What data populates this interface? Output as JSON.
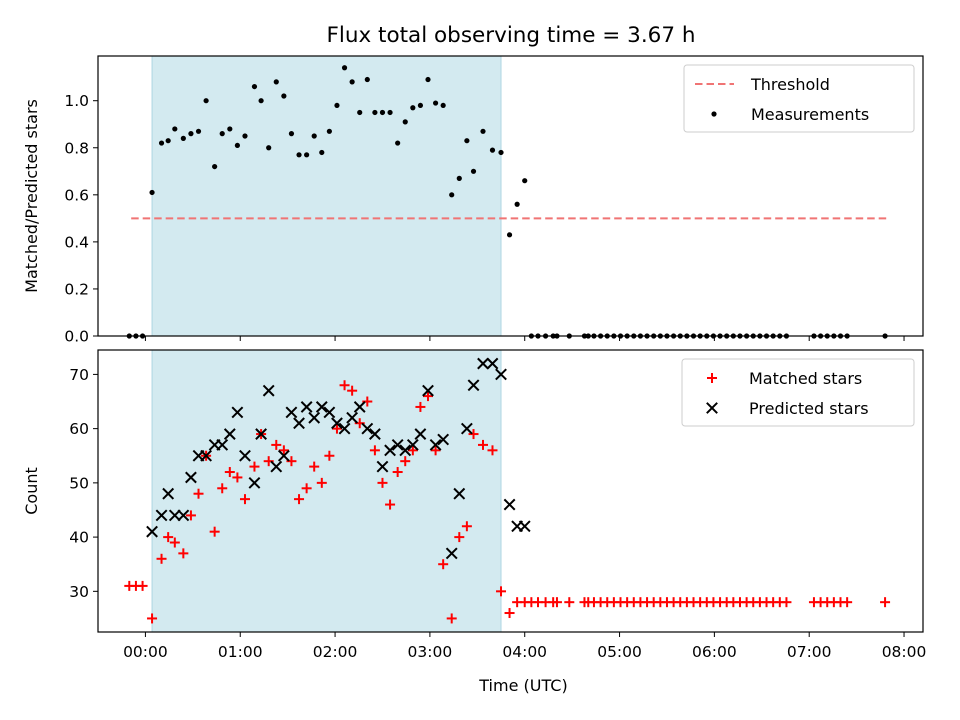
{
  "title": "Flux total observing time = 3.67 h",
  "colors": {
    "shade": "#d3eaf0",
    "shade_edge": "#aed6e3",
    "threshold": "#f07474",
    "measure": "#000000",
    "matched": "#ff0000",
    "predicted": "#000000"
  },
  "chart_data": [
    {
      "type": "scatter",
      "ylabel": "Matched/Predicted stars",
      "xlim": [
        -0.5,
        8.2
      ],
      "ylim": [
        0,
        1.19
      ],
      "yticks": [
        0,
        0.2,
        0.4,
        0.6,
        0.8,
        1.0
      ],
      "ytick_labels": [
        "0.0",
        "0.2",
        "0.4",
        "0.6",
        "0.8",
        "1.0"
      ],
      "xtick_labels_visible": false,
      "shaded_span": [
        0.07,
        3.75
      ],
      "legend": {
        "placement": "top-right",
        "entries": [
          "Threshold",
          "Measurements"
        ]
      },
      "threshold": {
        "name": "Threshold",
        "y": 0.5,
        "x_range": [
          -0.15,
          7.85
        ],
        "style": "dashed"
      },
      "series": [
        {
          "name": "Measurements",
          "marker": "dot",
          "x": [
            -0.17,
            -0.1,
            -0.03,
            0.07,
            0.17,
            0.24,
            0.31,
            0.4,
            0.48,
            0.56,
            0.64,
            0.73,
            0.81,
            0.89,
            0.97,
            1.05,
            1.15,
            1.22,
            1.3,
            1.38,
            1.46,
            1.54,
            1.62,
            1.7,
            1.78,
            1.86,
            1.94,
            2.02,
            2.1,
            2.18,
            2.26,
            2.34,
            2.42,
            2.5,
            2.58,
            2.66,
            2.74,
            2.82,
            2.9,
            2.98,
            3.06,
            3.14,
            3.23,
            3.31,
            3.39,
            3.46,
            3.56,
            3.66,
            3.75,
            3.84,
            3.92,
            4.0,
            4.07,
            4.14,
            4.22,
            4.3,
            4.34,
            4.47,
            4.63,
            4.67,
            4.73,
            4.8,
            4.87,
            4.94,
            5.01,
            5.08,
            5.15,
            5.22,
            5.29,
            5.36,
            5.43,
            5.5,
            5.57,
            5.64,
            5.71,
            5.78,
            5.85,
            5.92,
            5.99,
            6.06,
            6.13,
            6.2,
            6.27,
            6.34,
            6.41,
            6.48,
            6.55,
            6.62,
            6.69,
            6.76,
            7.05,
            7.12,
            7.19,
            7.26,
            7.33,
            7.4,
            7.8
          ],
          "y": [
            0,
            0,
            0,
            0.61,
            0.82,
            0.83,
            0.88,
            0.84,
            0.86,
            0.87,
            1.0,
            0.72,
            0.86,
            0.88,
            0.81,
            0.85,
            1.06,
            1.0,
            0.8,
            1.08,
            1.02,
            0.86,
            0.77,
            0.77,
            0.85,
            0.78,
            0.87,
            0.98,
            1.14,
            1.08,
            0.95,
            1.09,
            0.95,
            0.95,
            0.95,
            0.82,
            0.91,
            0.97,
            0.98,
            1.09,
            0.99,
            0.98,
            0.6,
            0.67,
            0.83,
            0.7,
            0.87,
            0.79,
            0.78,
            0.43,
            0.56,
            0.66,
            0,
            0,
            0,
            0,
            0,
            0,
            0,
            0,
            0,
            0,
            0,
            0,
            0,
            0,
            0,
            0,
            0,
            0,
            0,
            0,
            0,
            0,
            0,
            0,
            0,
            0,
            0,
            0,
            0,
            0,
            0,
            0,
            0,
            0,
            0,
            0,
            0,
            0,
            0,
            0,
            0,
            0,
            0,
            0,
            0
          ]
        }
      ]
    },
    {
      "type": "scatter",
      "xlabel": "Time (UTC)",
      "ylabel": "Count",
      "xlim": [
        -0.5,
        8.2
      ],
      "ylim": [
        22.5,
        74.5
      ],
      "yticks": [
        30,
        40,
        50,
        60,
        70
      ],
      "ytick_labels": [
        "30",
        "40",
        "50",
        "60",
        "70"
      ],
      "xticks": [
        0,
        1,
        2,
        3,
        4,
        5,
        6,
        7,
        8
      ],
      "xtick_labels": [
        "00:00",
        "01:00",
        "02:00",
        "03:00",
        "04:00",
        "05:00",
        "06:00",
        "07:00",
        "08:00"
      ],
      "shaded_span": [
        0.07,
        3.75
      ],
      "legend": {
        "placement": "top-right",
        "entries": [
          "Matched stars",
          "Predicted stars"
        ]
      },
      "series": [
        {
          "name": "Matched stars",
          "marker": "plus",
          "x": [
            -0.17,
            -0.1,
            -0.03,
            0.07,
            0.17,
            0.24,
            0.31,
            0.4,
            0.48,
            0.56,
            0.64,
            0.73,
            0.81,
            0.89,
            0.97,
            1.05,
            1.15,
            1.22,
            1.3,
            1.38,
            1.46,
            1.54,
            1.62,
            1.7,
            1.78,
            1.86,
            1.94,
            2.02,
            2.1,
            2.18,
            2.26,
            2.34,
            2.42,
            2.5,
            2.58,
            2.66,
            2.74,
            2.82,
            2.9,
            2.98,
            3.06,
            3.14,
            3.23,
            3.31,
            3.39,
            3.46,
            3.56,
            3.66,
            3.75,
            3.84,
            3.92,
            4.0,
            4.07,
            4.14,
            4.22,
            4.3,
            4.34,
            4.47,
            4.63,
            4.67,
            4.73,
            4.8,
            4.87,
            4.94,
            5.01,
            5.08,
            5.15,
            5.22,
            5.29,
            5.36,
            5.43,
            5.5,
            5.57,
            5.64,
            5.71,
            5.78,
            5.85,
            5.92,
            5.99,
            6.06,
            6.13,
            6.2,
            6.27,
            6.34,
            6.41,
            6.48,
            6.55,
            6.62,
            6.69,
            6.76,
            7.05,
            7.12,
            7.19,
            7.26,
            7.33,
            7.4,
            7.8
          ],
          "y": [
            31,
            31,
            31,
            25,
            36,
            40,
            39,
            37,
            44,
            48,
            55,
            41,
            49,
            52,
            51,
            47,
            53,
            59,
            54,
            57,
            56,
            54,
            47,
            49,
            53,
            50,
            55,
            60,
            68,
            67,
            61,
            65,
            56,
            50,
            46,
            52,
            54,
            56,
            64,
            66,
            56,
            35,
            25,
            40,
            42,
            59,
            57,
            56,
            30,
            26,
            28,
            28,
            28,
            28,
            28,
            28,
            28,
            28,
            28,
            28,
            28,
            28,
            28,
            28,
            28,
            28,
            28,
            28,
            28,
            28,
            28,
            28,
            28,
            28,
            28,
            28,
            28,
            28,
            28,
            28,
            28,
            28,
            28,
            28,
            28,
            28,
            28,
            28,
            28,
            28,
            28,
            28,
            28,
            28,
            28,
            28,
            28
          ]
        },
        {
          "name": "Predicted stars",
          "marker": "x",
          "x": [
            0.07,
            0.17,
            0.24,
            0.31,
            0.4,
            0.48,
            0.56,
            0.64,
            0.73,
            0.81,
            0.89,
            0.97,
            1.05,
            1.15,
            1.22,
            1.3,
            1.38,
            1.46,
            1.54,
            1.62,
            1.7,
            1.78,
            1.86,
            1.94,
            2.02,
            2.1,
            2.18,
            2.26,
            2.34,
            2.42,
            2.5,
            2.58,
            2.66,
            2.74,
            2.82,
            2.9,
            2.98,
            3.06,
            3.14,
            3.23,
            3.31,
            3.39,
            3.46,
            3.56,
            3.66,
            3.75,
            3.84,
            3.92,
            4.0
          ],
          "y": [
            41,
            44,
            48,
            44,
            44,
            51,
            55,
            55,
            57,
            57,
            59,
            63,
            55,
            50,
            59,
            67,
            53,
            55,
            63,
            61,
            64,
            62,
            64,
            63,
            61,
            60,
            62,
            64,
            60,
            59,
            53,
            56,
            57,
            56,
            57,
            59,
            67,
            57,
            58,
            37,
            48,
            60,
            68,
            72,
            72,
            70,
            46,
            42,
            42
          ]
        }
      ]
    }
  ]
}
